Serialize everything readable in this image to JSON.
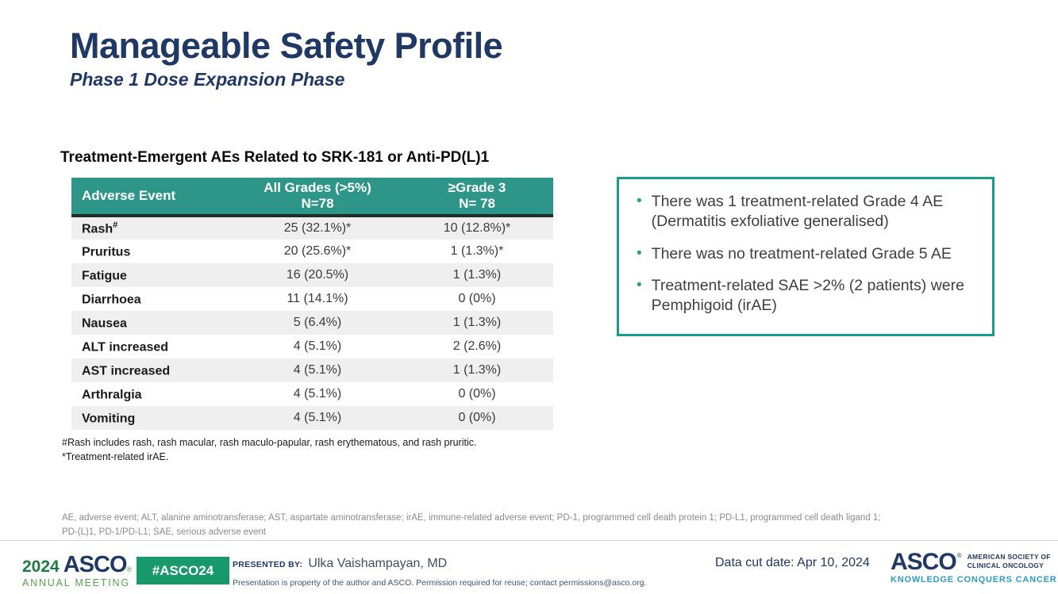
{
  "colors": {
    "navy": "#1F3864",
    "table_header_teal": "#2E9688",
    "box_border_teal": "#1A9B88",
    "badge_green": "#17996B",
    "logo_green_dark": "#1E7B45",
    "logo_green_light": "#56A44B",
    "tagline_blue": "#2E9BC5",
    "row_alt_gray": "#EFEFEF"
  },
  "header": {
    "title": "Manageable Safety Profile",
    "subtitle": "Phase 1 Dose Expansion Phase"
  },
  "ae_table": {
    "heading": "Treatment-Emergent AEs Related to SRK-181 or Anti-PD(L)1",
    "columns": {
      "col1": "Adverse Event",
      "col2_line1": "All Grades (>5%)",
      "col2_line2": "N=78",
      "col3_line1": "≥Grade 3",
      "col3_line2": "N= 78"
    },
    "rows": [
      {
        "name": "Rash",
        "sup": "#",
        "all_grades": "25 (32.1%)*",
        "grade3": "10 (12.8%)*"
      },
      {
        "name": "Pruritus",
        "sup": "",
        "all_grades": "20 (25.6%)*",
        "grade3": "1 (1.3%)*"
      },
      {
        "name": "Fatigue",
        "sup": "",
        "all_grades": "16 (20.5%)",
        "grade3": "1 (1.3%)"
      },
      {
        "name": "Diarrhoea",
        "sup": "",
        "all_grades": "11 (14.1%)",
        "grade3": "0 (0%)"
      },
      {
        "name": "Nausea",
        "sup": "",
        "all_grades": "5 (6.4%)",
        "grade3": "1 (1.3%)"
      },
      {
        "name": "ALT increased",
        "sup": "",
        "all_grades": "4 (5.1%)",
        "grade3": "2 (2.6%)"
      },
      {
        "name": "AST increased",
        "sup": "",
        "all_grades": "4 (5.1%)",
        "grade3": "1 (1.3%)"
      },
      {
        "name": "Arthralgia",
        "sup": "",
        "all_grades": "4 (5.1%)",
        "grade3": "0 (0%)"
      },
      {
        "name": "Vomiting",
        "sup": "",
        "all_grades": "4 (5.1%)",
        "grade3": "0 (0%)"
      }
    ],
    "footnote1": "#Rash includes rash, rash macular, rash maculo-papular, rash erythematous, and rash pruritic.",
    "footnote2": "*Treatment-related irAE."
  },
  "highlights": {
    "bullets": [
      "There was 1 treatment-related Grade 4 AE (Dermatitis exfoliative generalised)",
      "There was no treatment-related Grade 5 AE",
      "Treatment-related SAE >2% (2 patients) were Pemphigoid (irAE)"
    ]
  },
  "icons": {
    "bullet": "•",
    "registered_mark": "®"
  },
  "abbreviations": {
    "line1": "AE, adverse event; ALT, alanine aminotransferase; AST, aspartate aminotransferase; irAE, immune-related adverse event; PD-1, programmed cell death protein 1; PD-L1, programmed cell death ligand 1;",
    "line2": "PD-(L)1, PD-1/PD-L1; SAE, serious adverse event"
  },
  "footer": {
    "meeting_logo": {
      "year": "2024",
      "name": "ASCO",
      "subtitle": "ANNUAL MEETING"
    },
    "hashtag": "#ASCO24",
    "presented_by_label": "PRESENTED BY:",
    "presenter": "Ulka Vaishampayan, MD",
    "permission_note": "Presentation is property of the author and ASCO. Permission required for reuse; contact permissions@asco.org.",
    "data_cut_date": "Data cut date: Apr 10, 2024",
    "asco_logo": {
      "name": "ASCO",
      "society_line1": "AMERICAN SOCIETY OF",
      "society_line2": "CLINICAL ONCOLOGY",
      "tagline": "KNOWLEDGE CONQUERS CANCER"
    }
  }
}
